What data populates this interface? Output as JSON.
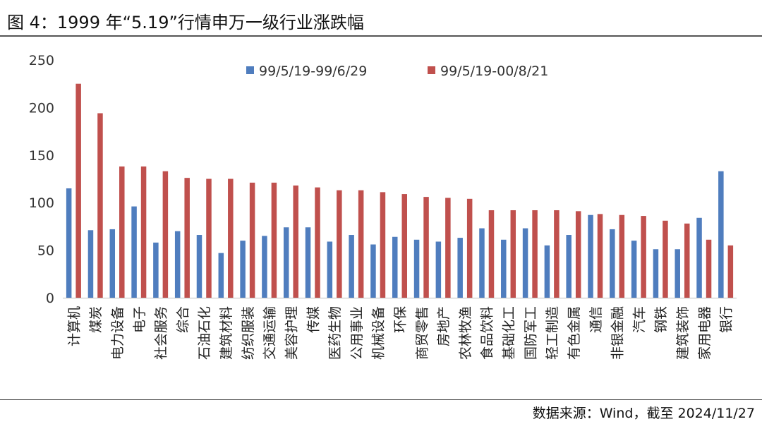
{
  "header": {
    "title": "图 4：1999 年“5.19”行情申万一级行业涨跌幅"
  },
  "footer": {
    "source": "数据来源：Wind，截至 2024/11/27"
  },
  "colors": {
    "series1": "#4F7DBE",
    "series2": "#C0504D",
    "axis": "#bfbfbf"
  },
  "chart_data": {
    "type": "bar",
    "categories": [
      "计算机",
      "煤炭",
      "电力设备",
      "电子",
      "社会服务",
      "综合",
      "石油石化",
      "建筑材料",
      "纺织服装",
      "交通运输",
      "美容护理",
      "传媒",
      "医药生物",
      "公用事业",
      "机械设备",
      "环保",
      "商贸零售",
      "房地产",
      "农林牧渔",
      "食品饮料",
      "基础化工",
      "国防军工",
      "轻工制造",
      "有色金属",
      "通信",
      "非银金融",
      "汽车",
      "钢铁",
      "建筑装饰",
      "家用电器",
      "银行"
    ],
    "series": [
      {
        "name": "99/5/19-99/6/29",
        "values": [
          115,
          71,
          72,
          96,
          58,
          70,
          66,
          47,
          60,
          65,
          74,
          74,
          59,
          66,
          56,
          64,
          61,
          59,
          63,
          73,
          61,
          73,
          55,
          66,
          87,
          72,
          60,
          51,
          51,
          84,
          133
        ]
      },
      {
        "name": "99/5/19-00/8/21",
        "values": [
          225,
          194,
          138,
          138,
          133,
          126,
          125,
          125,
          121,
          121,
          118,
          116,
          113,
          113,
          111,
          109,
          106,
          105,
          104,
          92,
          92,
          92,
          92,
          91,
          88,
          87,
          86,
          81,
          78,
          61,
          55
        ]
      }
    ],
    "yticks": [
      "0",
      "50",
      "100",
      "150",
      "200",
      "250"
    ],
    "ylim": [
      0,
      250
    ],
    "grid": false,
    "legend": "top"
  }
}
